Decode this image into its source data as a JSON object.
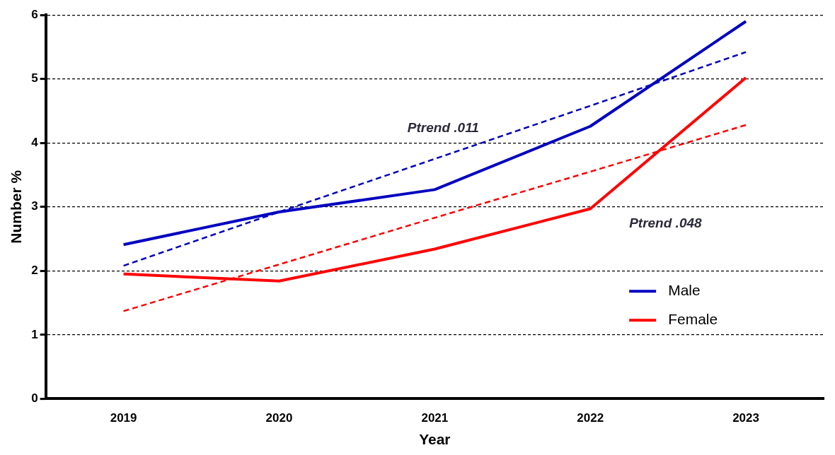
{
  "chart_data": {
    "type": "line",
    "xlabel": "Year",
    "ylabel": "Number %",
    "categories": [
      "2019",
      "2020",
      "2021",
      "2022",
      "2023"
    ],
    "series": [
      {
        "name": "Male",
        "color": "#0000c0",
        "values": [
          2.41,
          2.92,
          3.27,
          4.26,
          5.9
        ],
        "line_style": "solid"
      },
      {
        "name": "Female",
        "color": "#ff0000",
        "values": [
          1.95,
          1.84,
          2.34,
          2.97,
          5.02
        ],
        "line_style": "solid"
      },
      {
        "color": "#0000c0",
        "values": [
          2.08,
          2.92,
          3.75,
          4.58,
          5.42
        ],
        "line_style": "dashed"
      },
      {
        "color": "#ff0000",
        "values": [
          1.37,
          2.1,
          2.83,
          3.55,
          4.28
        ],
        "line_style": "dashed"
      }
    ],
    "ylim": [
      0,
      6
    ],
    "yticks": [
      0,
      1,
      2,
      3,
      4,
      5,
      6
    ],
    "grid": "y",
    "legend": "bottom right",
    "marker": "none",
    "annotations": [
      "Ptrend .011",
      "Ptrend .048"
    ]
  }
}
